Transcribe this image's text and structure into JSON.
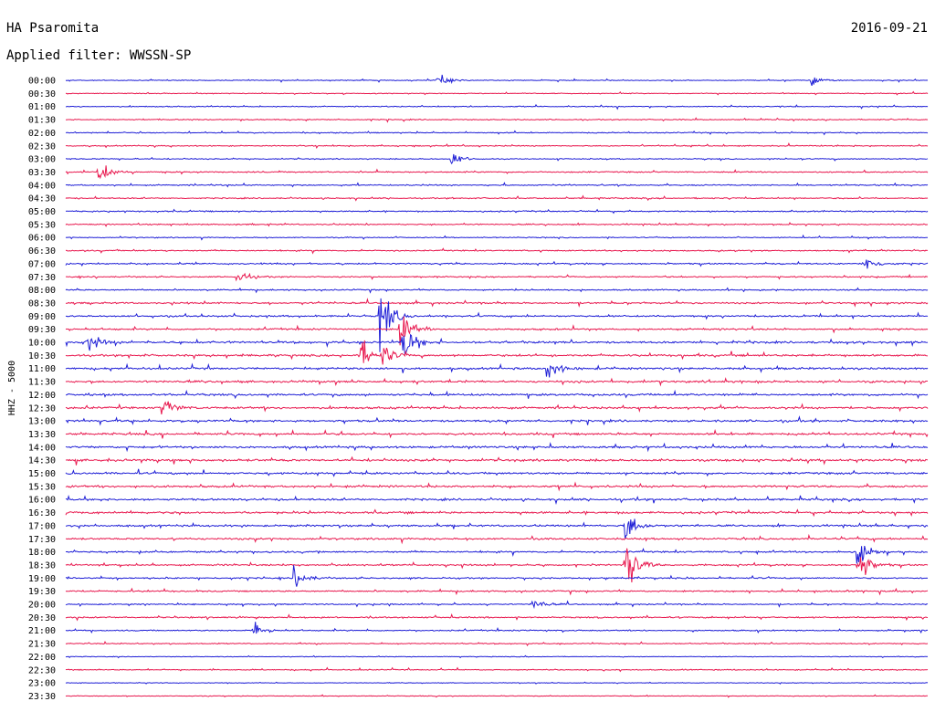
{
  "header": {
    "station": "HA Psaromita",
    "date": "2016-09-21",
    "filter": "Applied filter: WWSSN-SP"
  },
  "chart_data": {
    "type": "line",
    "title": "HA Psaromita",
    "ylabel": "HHZ - 5000",
    "grid": false,
    "legend": "none",
    "colors": [
      "#1f1fd6",
      "#e8194f"
    ],
    "rows": [
      "00:00",
      "00:30",
      "01:00",
      "01:30",
      "02:00",
      "02:30",
      "03:00",
      "03:30",
      "04:00",
      "04:30",
      "05:00",
      "05:30",
      "06:00",
      "06:30",
      "07:00",
      "07:30",
      "08:00",
      "08:30",
      "09:00",
      "09:30",
      "10:00",
      "10:30",
      "11:00",
      "11:30",
      "12:00",
      "12:30",
      "13:00",
      "13:30",
      "14:00",
      "14:30",
      "15:00",
      "15:30",
      "16:00",
      "16:30",
      "17:00",
      "17:30",
      "18:00",
      "18:30",
      "19:00",
      "19:30",
      "20:00",
      "20:30",
      "21:00",
      "21:30",
      "22:00",
      "22:30",
      "23:00",
      "23:30"
    ],
    "noise_level": [
      0.4,
      0.4,
      0.5,
      0.5,
      0.5,
      0.5,
      0.5,
      0.6,
      0.6,
      0.6,
      0.6,
      0.6,
      0.5,
      0.6,
      0.7,
      0.6,
      0.6,
      0.8,
      0.8,
      0.8,
      1.0,
      1.0,
      1.0,
      1.0,
      1.0,
      1.0,
      1.0,
      1.0,
      1.0,
      1.1,
      1.0,
      1.0,
      1.0,
      1.0,
      0.9,
      0.9,
      0.8,
      0.8,
      0.7,
      0.7,
      0.6,
      0.7,
      0.6,
      0.5,
      0.3,
      0.5,
      0.3,
      0.3
    ],
    "events": [
      {
        "row": "00:00",
        "minute": 13.0,
        "amplitude": 0.8
      },
      {
        "row": "00:00",
        "minute": 26.0,
        "amplitude": 0.7
      },
      {
        "row": "03:00",
        "minute": 13.5,
        "amplitude": 0.9
      },
      {
        "row": "03:30",
        "minute": 1.2,
        "amplitude": 1.4
      },
      {
        "row": "07:00",
        "minute": 27.9,
        "amplitude": 1.0
      },
      {
        "row": "07:30",
        "minute": 6.0,
        "amplitude": 1.0
      },
      {
        "row": "09:00",
        "minute": 11.0,
        "amplitude": 4.0
      },
      {
        "row": "09:30",
        "minute": 11.7,
        "amplitude": 2.2
      },
      {
        "row": "10:00",
        "minute": 0.8,
        "amplitude": 1.4
      },
      {
        "row": "10:00",
        "minute": 11.8,
        "amplitude": 2.8
      },
      {
        "row": "10:30",
        "minute": 10.3,
        "amplitude": 2.0
      },
      {
        "row": "10:30",
        "minute": 11.1,
        "amplitude": 1.2
      },
      {
        "row": "11:00",
        "minute": 16.8,
        "amplitude": 1.5
      },
      {
        "row": "12:30",
        "minute": 3.4,
        "amplitude": 1.5
      },
      {
        "row": "17:00",
        "minute": 19.5,
        "amplitude": 2.5
      },
      {
        "row": "18:30",
        "minute": 19.5,
        "amplitude": 4.5
      },
      {
        "row": "18:00",
        "minute": 27.6,
        "amplitude": 2.0
      },
      {
        "row": "18:30",
        "minute": 27.6,
        "amplitude": 2.8
      },
      {
        "row": "19:00",
        "minute": 8.0,
        "amplitude": 1.4
      },
      {
        "row": "20:00",
        "minute": 16.3,
        "amplitude": 0.8
      },
      {
        "row": "21:00",
        "minute": 6.6,
        "amplitude": 1.0
      }
    ]
  }
}
